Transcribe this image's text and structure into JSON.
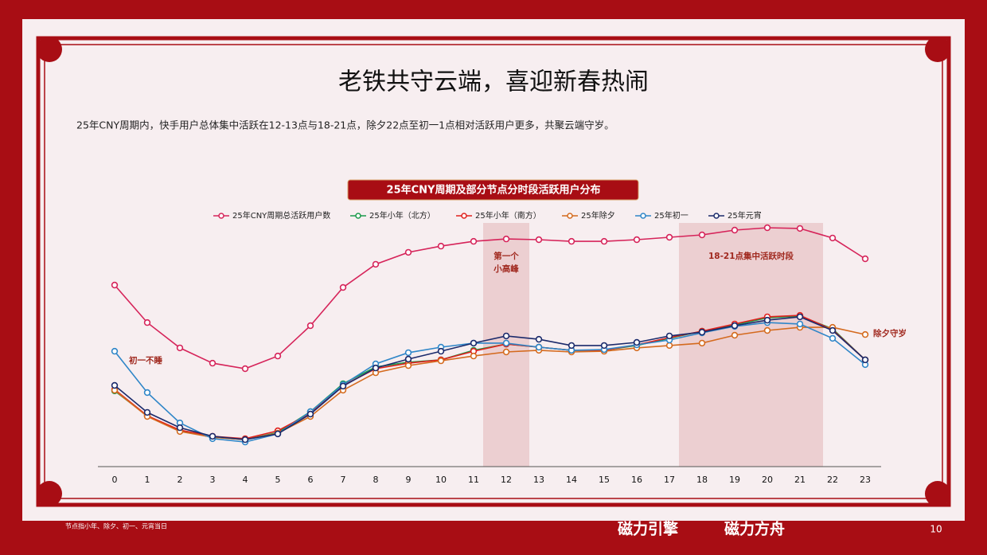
{
  "page": {
    "title": "老铁共守云端，喜迎新春热闹",
    "subtitle": "25年CNY周期内，快手用户总体集中活跃在12-13点与18-21点，除夕22点至初一1点相对活跃用户更多，共聚云端守岁。",
    "footnote": "节点指小年、除夕、初一、元宵当日",
    "logos": [
      "磁力引擎",
      "磁力方舟"
    ],
    "page_number": "10"
  },
  "chart_data": {
    "type": "line",
    "title": "25年CNY周期及部分节点分时段活跃用户分布",
    "categories": [
      "0",
      "1",
      "2",
      "3",
      "4",
      "5",
      "6",
      "7",
      "8",
      "9",
      "10",
      "11",
      "12",
      "13",
      "14",
      "15",
      "16",
      "17",
      "18",
      "19",
      "20",
      "21",
      "22",
      "23"
    ],
    "series": [
      {
        "name": "25年CNY周期总活跃用户数",
        "color": "#d6245a",
        "values": [
          76,
          60.3,
          49.7,
          43.3,
          41,
          46.3,
          59,
          75,
          84.7,
          89.7,
          92.3,
          94.3,
          95.3,
          95,
          94.3,
          94.3,
          95,
          96,
          97,
          99,
          100,
          99.7,
          95.7,
          87
        ]
      },
      {
        "name": "25年小年（北方）",
        "color": "#1a9a4a",
        "values": [
          31.7,
          21.3,
          15,
          12.3,
          11.3,
          14.3,
          23,
          34.7,
          41.7,
          43.7,
          44.7,
          48.7,
          51.3,
          50,
          48.7,
          48.7,
          50.7,
          53.7,
          56.7,
          59.3,
          62.3,
          63,
          57.7,
          44.7
        ]
      },
      {
        "name": "25年小年（南方）",
        "color": "#e0201c",
        "values": [
          32.3,
          21.3,
          15.3,
          12.7,
          11.7,
          15,
          22.3,
          34,
          41,
          43.3,
          44.7,
          48.3,
          51.3,
          50,
          48.7,
          48.7,
          51,
          54,
          56.7,
          59.7,
          62.7,
          63.3,
          57.3,
          44.7
        ]
      },
      {
        "name": "25年除夕",
        "color": "#d46a1e",
        "values": [
          32,
          21,
          14.7,
          12.3,
          11.3,
          14,
          21,
          32,
          39.3,
          42.3,
          44.3,
          46.3,
          48,
          48.7,
          48,
          48.3,
          49.7,
          50.7,
          51.7,
          55,
          57,
          58.3,
          58.3,
          55.3
        ]
      },
      {
        "name": "25年初一",
        "color": "#2f86c8",
        "values": [
          48.3,
          31,
          18.3,
          11.7,
          10.3,
          13.7,
          23,
          34.3,
          43,
          47.7,
          50,
          51.7,
          51.7,
          50,
          48.7,
          49,
          51,
          53,
          56,
          58.7,
          60.3,
          59.7,
          53.7,
          42.7
        ]
      },
      {
        "name": "25年元宵",
        "color": "#1b2a6b",
        "values": [
          34,
          22.7,
          16.3,
          12.7,
          11.3,
          13.7,
          22,
          33.7,
          41.3,
          45,
          48.3,
          51.7,
          54.7,
          53.3,
          50.7,
          50.7,
          52,
          54.7,
          56.3,
          59,
          61.3,
          62.7,
          57,
          44.7
        ]
      }
    ],
    "highlights": [
      {
        "from": "12",
        "to": "12",
        "label": [
          "第一个",
          "小高峰"
        ]
      },
      {
        "from": "18",
        "to": "21",
        "label": [
          "18-21点集中活跃时段"
        ]
      }
    ],
    "annotations": [
      "初一不睡",
      "除夕守岁"
    ]
  }
}
